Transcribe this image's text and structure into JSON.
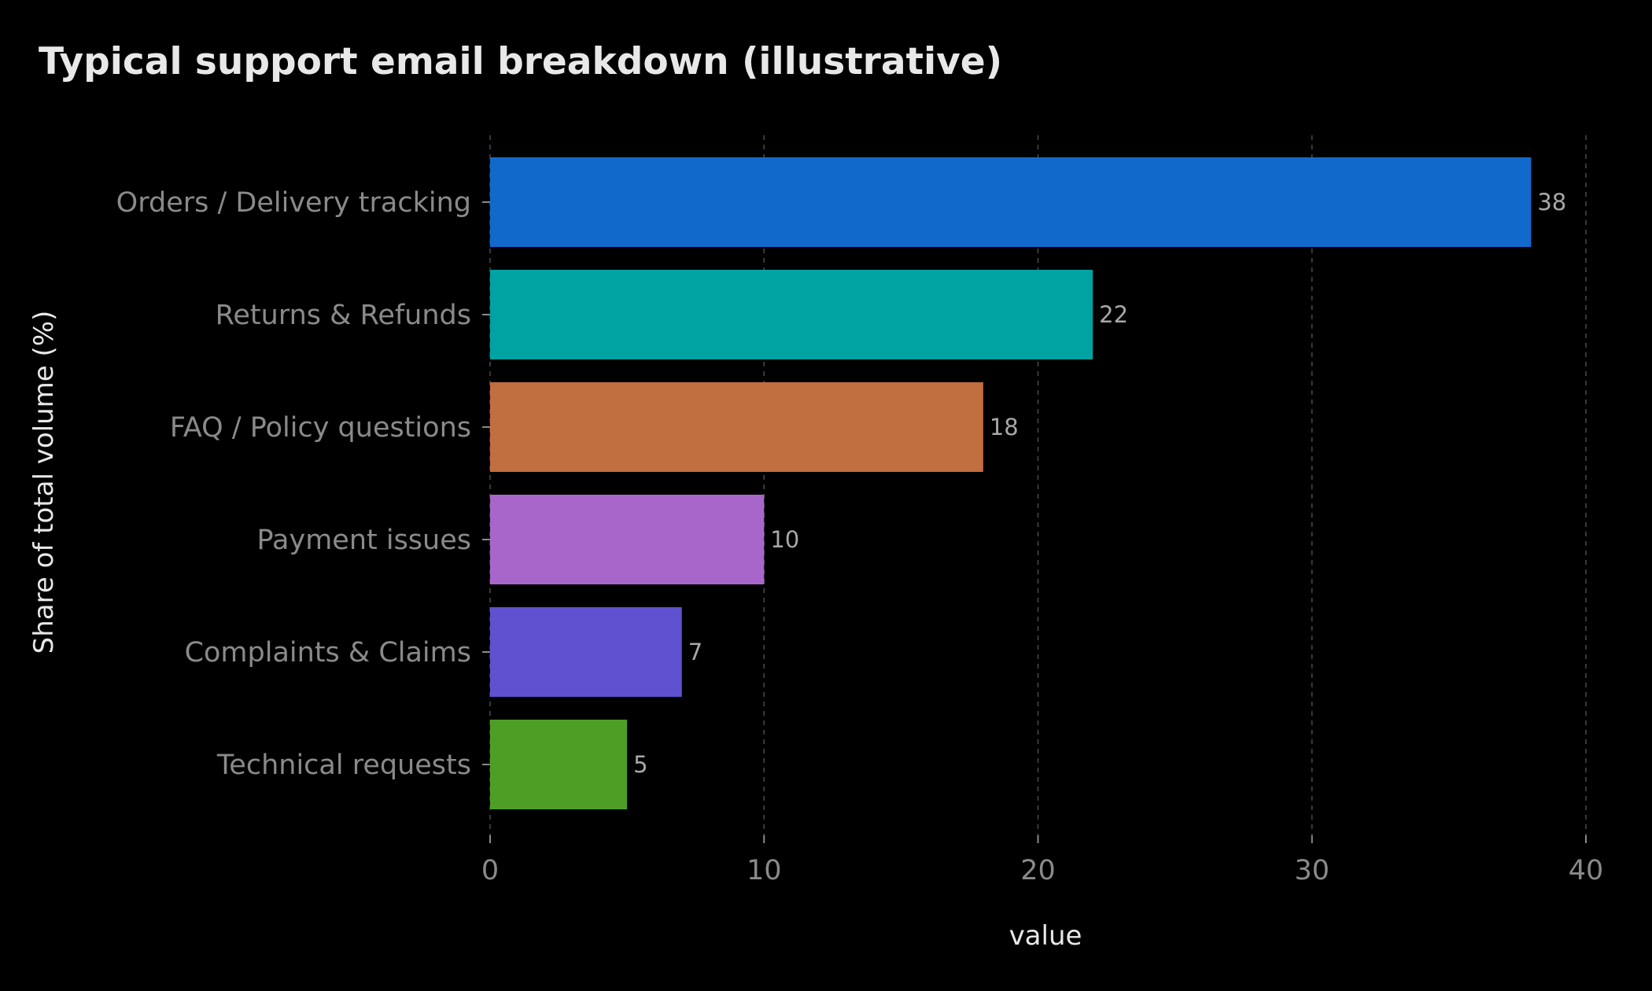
{
  "chart_data": {
    "type": "bar",
    "orientation": "horizontal",
    "title": "Typical support email breakdown (illustrative)",
    "xlabel": "value",
    "ylabel": "Share of total volume (%)",
    "categories": [
      "Orders / Delivery tracking",
      "Returns & Refunds",
      "FAQ / Policy questions",
      "Payment issues",
      "Complaints & Claims",
      "Technical requests"
    ],
    "values": [
      38,
      22,
      18,
      10,
      7,
      5
    ],
    "colors": [
      "#1169cc",
      "#00a2a2",
      "#c16e40",
      "#a866cb",
      "#5f51cf",
      "#4e9e26"
    ],
    "xlim": [
      0,
      40
    ],
    "xticks": [
      0,
      10,
      20,
      30,
      40
    ],
    "grid": "x-dashed",
    "legend": "none"
  }
}
